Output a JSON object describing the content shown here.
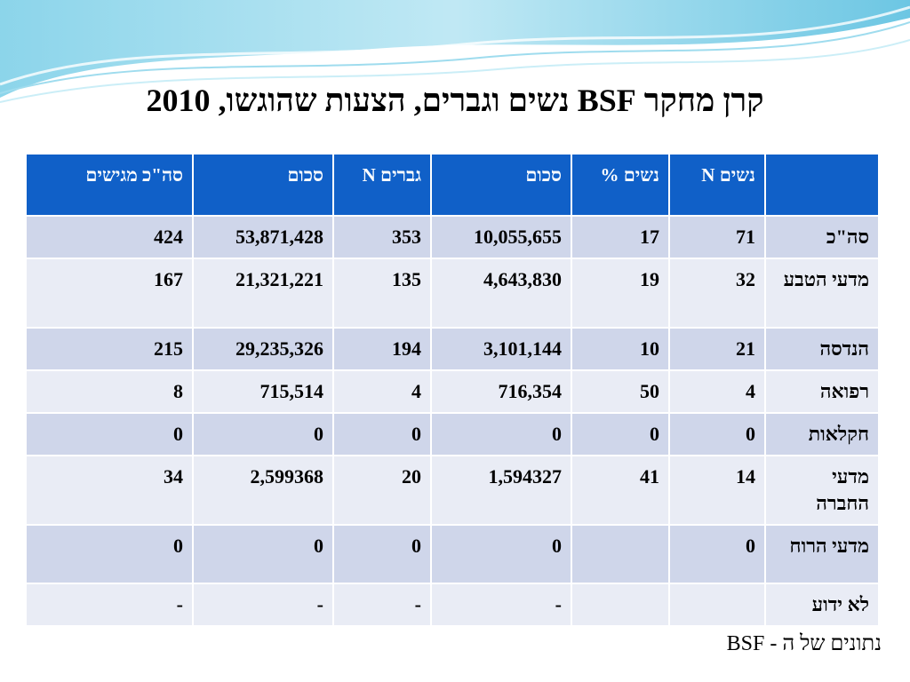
{
  "title": "קרן מחקר BSF נשים וגברים, הצעות שהוגשו, 2010",
  "table": {
    "headers": [
      "",
      "נשים N",
      "נשים %",
      "סכום",
      "גברים N",
      "סכום",
      "סה\"כ מגישים"
    ],
    "rows": [
      [
        "סה\"כ",
        "71",
        "17",
        "10,055,655",
        "353",
        "53,871,428",
        "424"
      ],
      [
        "מדעי הטבע",
        "32",
        "19",
        "4,643,830",
        "135",
        "21,321,221",
        "167"
      ],
      [
        "הנדסה",
        "21",
        "10",
        "3,101,144",
        "194",
        "29,235,326",
        "215"
      ],
      [
        "רפואה",
        "4",
        "50",
        "716,354",
        "4",
        "715,514",
        "8"
      ],
      [
        "חקלאות",
        "0",
        "0",
        "0",
        "0",
        "0",
        "0"
      ],
      [
        "מדעי החברה",
        "14",
        "41",
        "1,594327",
        "20",
        "2,599368",
        "34"
      ],
      [
        "מדעי הרוח",
        "0",
        "",
        "0",
        "0",
        "0",
        "0"
      ],
      [
        "לא ידוע",
        "",
        "",
        "-",
        "-",
        "-",
        "-"
      ]
    ]
  },
  "source": "נתונים של ה - BSF",
  "colors": {
    "header": "#1060c8",
    "row_odd": "#cfd6ea",
    "row_even": "#e9ecf5"
  }
}
